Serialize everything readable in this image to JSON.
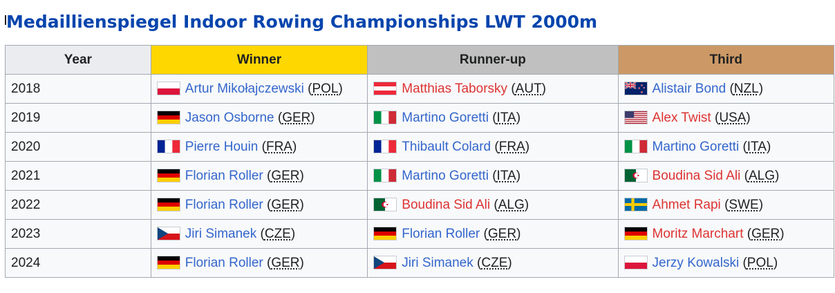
{
  "page": {
    "title": "Medaillienspiegel Indoor Rowing Championships LWT 2000m"
  },
  "colors": {
    "link": "#3366cc",
    "link_red": "#dd3333",
    "gold": "#ffd700",
    "silver": "#c0c0c0",
    "bronze": "#cc9966",
    "header_bg": "#eaecf0"
  },
  "table": {
    "headers": {
      "year": "Year",
      "winner": "Winner",
      "runner_up": "Runner-up",
      "third": "Third"
    },
    "rows": [
      {
        "year": "2018",
        "winner": {
          "name": "Artur Mikołajczewski",
          "country": "POL",
          "flag": "poland-flag-icon",
          "link": "blue"
        },
        "runner_up": {
          "name": "Matthias Taborsky",
          "country": "AUT",
          "flag": "austria-flag-icon",
          "link": "red"
        },
        "third": {
          "name": "Alistair Bond",
          "country": "NZL",
          "flag": "new-zealand-flag-icon",
          "link": "blue"
        }
      },
      {
        "year": "2019",
        "winner": {
          "name": "Jason Osborne",
          "country": "GER",
          "flag": "germany-flag-icon",
          "link": "blue"
        },
        "runner_up": {
          "name": "Martino Goretti",
          "country": "ITA",
          "flag": "italy-flag-icon",
          "link": "blue"
        },
        "third": {
          "name": "Alex Twist",
          "country": "USA",
          "flag": "usa-flag-icon",
          "link": "red"
        }
      },
      {
        "year": "2020",
        "winner": {
          "name": "Pierre Houin",
          "country": "FRA",
          "flag": "france-flag-icon",
          "link": "blue"
        },
        "runner_up": {
          "name": "Thibault Colard",
          "country": "FRA",
          "flag": "france-flag-icon",
          "link": "blue"
        },
        "third": {
          "name": "Martino Goretti",
          "country": "ITA",
          "flag": "italy-flag-icon",
          "link": "blue"
        }
      },
      {
        "year": "2021",
        "winner": {
          "name": "Florian Roller",
          "country": "GER",
          "flag": "germany-flag-icon",
          "link": "blue"
        },
        "runner_up": {
          "name": "Martino Goretti",
          "country": "ITA",
          "flag": "italy-flag-icon",
          "link": "blue"
        },
        "third": {
          "name": "Boudina Sid Ali",
          "country": "ALG",
          "flag": "algeria-flag-icon",
          "link": "red"
        }
      },
      {
        "year": "2022",
        "winner": {
          "name": "Florian Roller",
          "country": "GER",
          "flag": "germany-flag-icon",
          "link": "blue"
        },
        "runner_up": {
          "name": "Boudina Sid Ali",
          "country": "ALG",
          "flag": "algeria-flag-icon",
          "link": "red"
        },
        "third": {
          "name": "Ahmet Rapi",
          "country": "SWE",
          "flag": "sweden-flag-icon",
          "link": "red"
        }
      },
      {
        "year": "2023",
        "winner": {
          "name": "Jiri Simanek",
          "country": "CZE",
          "flag": "czech-flag-icon",
          "link": "blue"
        },
        "runner_up": {
          "name": "Florian Roller",
          "country": "GER",
          "flag": "germany-flag-icon",
          "link": "blue"
        },
        "third": {
          "name": "Moritz Marchart",
          "country": "GER",
          "flag": "germany-flag-icon",
          "link": "red"
        }
      },
      {
        "year": "2024",
        "winner": {
          "name": "Florian Roller",
          "country": "GER",
          "flag": "germany-flag-icon",
          "link": "blue"
        },
        "runner_up": {
          "name": "Jiri Simanek",
          "country": "CZE",
          "flag": "czech-flag-icon",
          "link": "blue"
        },
        "third": {
          "name": "Jerzy Kowalski",
          "country": "POL",
          "flag": "poland-flag-icon",
          "link": "blue"
        }
      }
    ]
  }
}
